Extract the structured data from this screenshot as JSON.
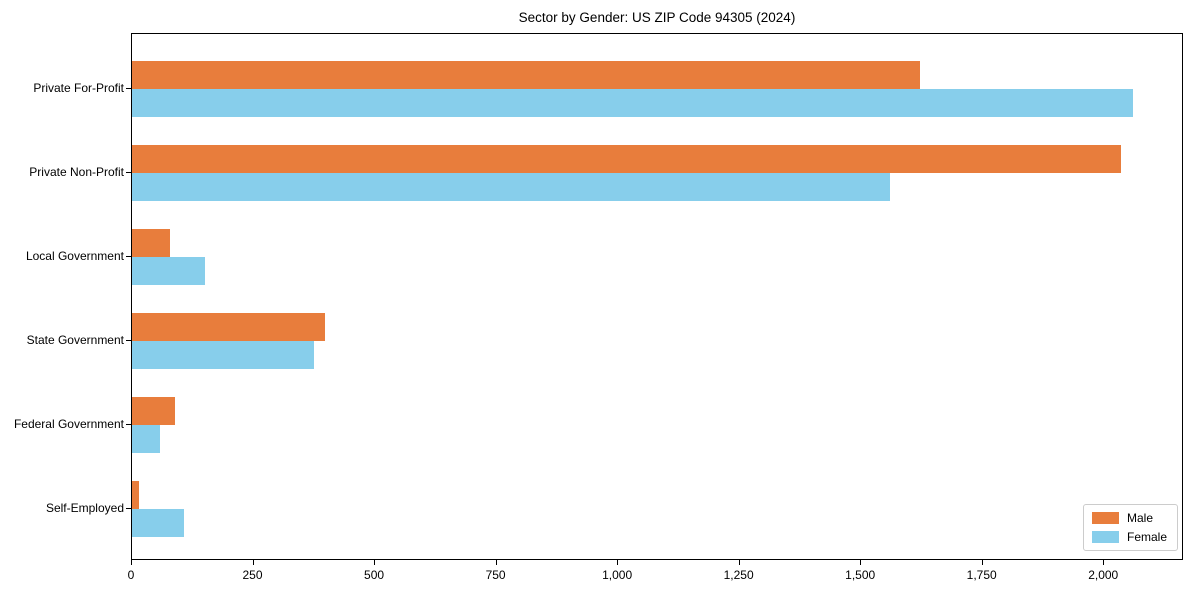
{
  "title": "Sector by Gender: US ZIP Code 94305 (2024)",
  "legend": {
    "male_label": "Male",
    "female_label": "Female"
  },
  "colors": {
    "male": "#e87d3c",
    "female": "#87ceeb",
    "spine": "#000000",
    "legend_border": "#cccccc"
  },
  "chart_data": {
    "type": "bar",
    "orientation": "horizontal",
    "title": "Sector by Gender: US ZIP Code 94305 (2024)",
    "categories": [
      "Private For-Profit",
      "Private Non-Profit",
      "Local Government",
      "State Government",
      "Federal Government",
      "Self-Employed"
    ],
    "series": [
      {
        "name": "Male",
        "color": "#e87d3c",
        "values": [
          1620,
          2035,
          78,
          398,
          88,
          15
        ]
      },
      {
        "name": "Female",
        "color": "#87ceeb",
        "values": [
          2060,
          1560,
          150,
          375,
          57,
          106
        ]
      }
    ],
    "xlabel": "",
    "ylabel": "",
    "xlim": [
      0,
      2160
    ],
    "xticks": [
      0,
      250,
      500,
      750,
      1000,
      1250,
      1500,
      1750,
      2000
    ],
    "xtick_labels": [
      "0",
      "250",
      "500",
      "750",
      "1,000",
      "1,250",
      "1,500",
      "1,750",
      "2,000"
    ],
    "grid": false,
    "legend_position": "lower right"
  }
}
